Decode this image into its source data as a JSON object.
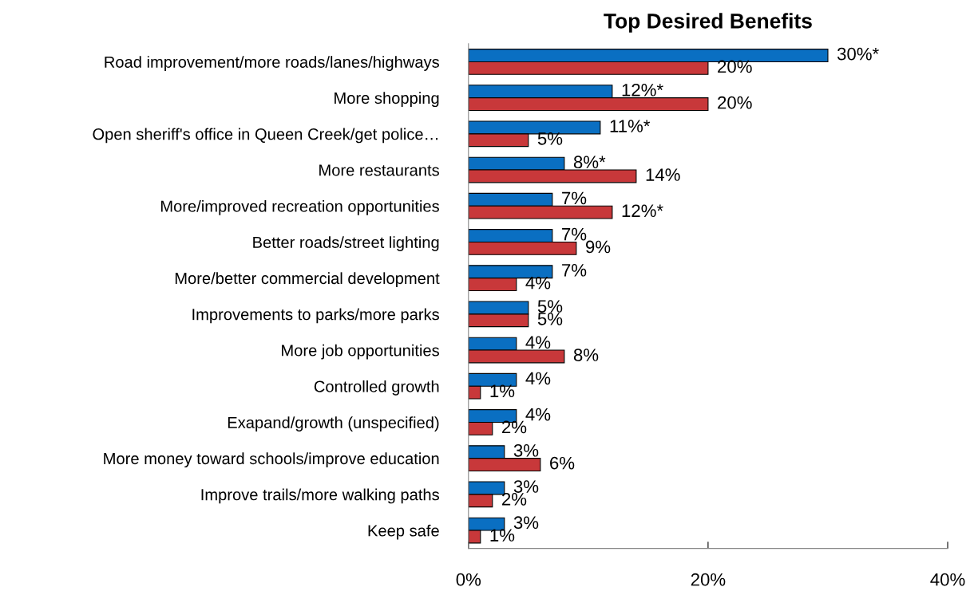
{
  "chart_data": {
    "type": "bar",
    "orientation": "horizontal",
    "title": "Top Desired Benefits",
    "categories": [
      "Road improvement/more roads/lanes/highways",
      "More shopping",
      "Open sheriff's office in Queen Creek/get police…",
      "More restaurants",
      "More/improved recreation opportunities",
      "Better roads/street lighting",
      "More/better commercial development",
      "Improvements to parks/more parks",
      "More job opportunities",
      "Controlled growth",
      "Exapand/growth (unspecified)",
      "More money toward schools/improve education",
      "Improve trails/more walking paths",
      "Keep safe"
    ],
    "series": [
      {
        "color": "#0a6fc2",
        "values": [
          30,
          12,
          11,
          8,
          7,
          7,
          7,
          5,
          4,
          4,
          4,
          3,
          3,
          3
        ],
        "value_labels": [
          "30%*",
          "12%*",
          "11%*",
          "8%*",
          "7%",
          "7%",
          "7%",
          "5%",
          "4%",
          "4%",
          "4%",
          "3%",
          "3%",
          "3%"
        ]
      },
      {
        "color": "#c8383a",
        "values": [
          20,
          20,
          5,
          14,
          12,
          9,
          4,
          5,
          8,
          1,
          2,
          6,
          2,
          1
        ],
        "value_labels": [
          "20%",
          "20%",
          "5%",
          "14%",
          "12%*",
          "9%",
          "4%",
          "5%",
          "8%",
          "1%",
          "2%",
          "6%",
          "2%",
          "1%"
        ]
      }
    ],
    "xlim": [
      0,
      40
    ],
    "xticks": [
      {
        "value": 0,
        "label": "0%"
      },
      {
        "value": 20,
        "label": "20%"
      },
      {
        "value": 40,
        "label": "40%"
      }
    ],
    "grid": false,
    "legend": false
  }
}
